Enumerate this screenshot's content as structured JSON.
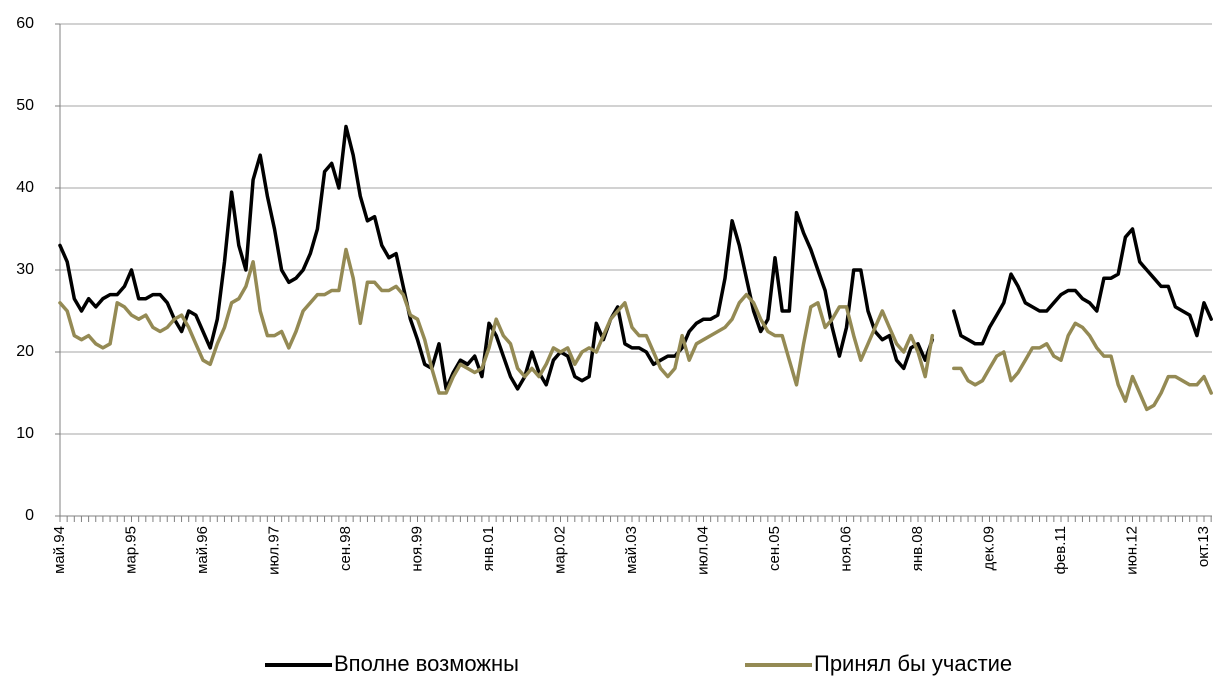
{
  "chart_data": {
    "type": "line",
    "categories": [
      "май.94",
      null,
      null,
      null,
      null,
      null,
      null,
      null,
      null,
      null,
      "мар.95",
      null,
      null,
      null,
      null,
      null,
      null,
      null,
      null,
      null,
      "май.96",
      null,
      null,
      null,
      null,
      null,
      null,
      null,
      null,
      null,
      "июл.97",
      null,
      null,
      null,
      null,
      null,
      null,
      null,
      null,
      null,
      "сен.98",
      null,
      null,
      null,
      null,
      null,
      null,
      null,
      null,
      null,
      "ноя.99",
      null,
      null,
      null,
      null,
      null,
      null,
      null,
      null,
      null,
      "янв.01",
      null,
      null,
      null,
      null,
      null,
      null,
      null,
      null,
      null,
      "мар.02",
      null,
      null,
      null,
      null,
      null,
      null,
      null,
      null,
      null,
      "май.03",
      null,
      null,
      null,
      null,
      null,
      null,
      null,
      null,
      null,
      "июл.04",
      null,
      null,
      null,
      null,
      null,
      null,
      null,
      null,
      null,
      "сен.05",
      null,
      null,
      null,
      null,
      null,
      null,
      null,
      null,
      null,
      "ноя.06",
      null,
      null,
      null,
      null,
      null,
      null,
      null,
      null,
      null,
      "янв.08",
      null,
      null,
      null,
      null,
      null,
      null,
      null,
      null,
      null,
      "дек.09",
      null,
      null,
      null,
      null,
      null,
      null,
      null,
      null,
      null,
      "фев.11",
      null,
      null,
      null,
      null,
      null,
      null,
      null,
      null,
      null,
      "июн.12",
      null,
      null,
      null,
      null,
      null,
      null,
      null,
      null,
      null,
      "окт.13",
      null
    ],
    "series": [
      {
        "name": "Вполне возможны",
        "color": "#000000",
        "values": [
          33,
          31,
          26.5,
          25,
          26.5,
          25.5,
          26.5,
          27,
          27,
          28,
          30,
          26.5,
          26.5,
          27,
          27,
          26,
          24,
          22.5,
          25,
          24.5,
          22.5,
          20.5,
          24,
          31,
          39.5,
          33,
          30,
          41,
          44,
          39,
          35,
          30,
          28.5,
          29,
          30,
          32,
          35,
          42,
          43,
          40,
          47.5,
          44,
          39,
          36,
          36.5,
          33,
          31.5,
          32,
          28,
          24,
          21.5,
          18.5,
          18,
          21,
          15.5,
          17.5,
          19,
          18.5,
          19.5,
          17,
          23.5,
          22,
          19.5,
          17,
          15.5,
          17,
          20,
          17.5,
          16,
          19,
          20,
          19.5,
          17,
          16.5,
          17,
          23.5,
          21.5,
          24,
          25.5,
          21,
          20.5,
          20.5,
          20,
          18.5,
          19,
          19.5,
          19.5,
          20.5,
          22.5,
          23.5,
          24,
          24,
          24.5,
          29,
          36,
          33,
          29,
          25,
          22.5,
          24,
          31.5,
          25,
          25,
          37,
          34.5,
          32.5,
          30,
          27.5,
          23,
          19.5,
          23,
          30,
          30,
          25,
          22.5,
          21.5,
          22,
          19,
          18,
          20.5,
          21,
          19,
          21.5,
          null,
          null,
          25,
          22,
          21.5,
          21,
          21,
          23,
          24.5,
          26,
          29.5,
          28,
          26,
          25.5,
          25,
          25,
          26,
          27,
          27.5,
          27.5,
          26.5,
          26,
          25,
          29,
          29,
          29.5,
          34,
          35,
          31,
          30,
          29,
          28,
          28,
          25.5,
          25,
          24.5,
          22,
          26,
          24
        ]
      },
      {
        "name": "Принял бы участие",
        "color": "#948a54",
        "values": [
          26,
          25,
          22,
          21.5,
          22,
          21,
          20.5,
          21,
          26,
          25.5,
          24.5,
          24,
          24.5,
          23,
          22.5,
          23,
          24,
          24.5,
          23,
          21,
          19,
          18.5,
          21,
          23,
          26,
          26.5,
          28,
          31,
          25,
          22,
          22,
          22.5,
          20.5,
          22.5,
          25,
          26,
          27,
          27,
          27.5,
          27.5,
          32.5,
          29,
          23.5,
          28.5,
          28.5,
          27.5,
          27.5,
          28,
          27,
          24.5,
          24,
          21.5,
          18,
          15,
          15,
          17,
          18.5,
          18,
          17.5,
          18,
          20.5,
          24,
          22,
          21,
          18,
          17,
          18,
          17,
          18.5,
          20.5,
          20,
          20.5,
          18.5,
          20,
          20.5,
          20,
          22,
          24,
          25,
          26,
          23,
          22,
          22,
          20,
          18,
          17,
          18,
          22,
          19,
          21,
          21.5,
          22,
          22.5,
          23,
          24,
          26,
          27,
          26,
          24,
          22.5,
          22,
          22,
          19,
          16,
          21,
          25.5,
          26,
          23,
          24,
          25.5,
          25.5,
          22,
          19,
          21,
          23,
          25,
          23,
          21,
          20,
          22,
          20,
          17,
          22,
          null,
          null,
          18,
          18,
          16.5,
          16,
          16.5,
          18,
          19.5,
          20,
          16.5,
          17.5,
          19,
          20.5,
          20.5,
          21,
          19.5,
          19,
          22,
          23.5,
          23,
          22,
          20.5,
          19.5,
          19.5,
          16,
          14,
          17,
          15,
          13,
          13.5,
          15,
          17,
          17,
          16.5,
          16,
          16,
          17,
          15
        ]
      }
    ],
    "ylim": [
      0,
      60
    ],
    "yticks": [
      0,
      10,
      20,
      30,
      40,
      50,
      60
    ],
    "grid": true,
    "legend": "bottom"
  }
}
